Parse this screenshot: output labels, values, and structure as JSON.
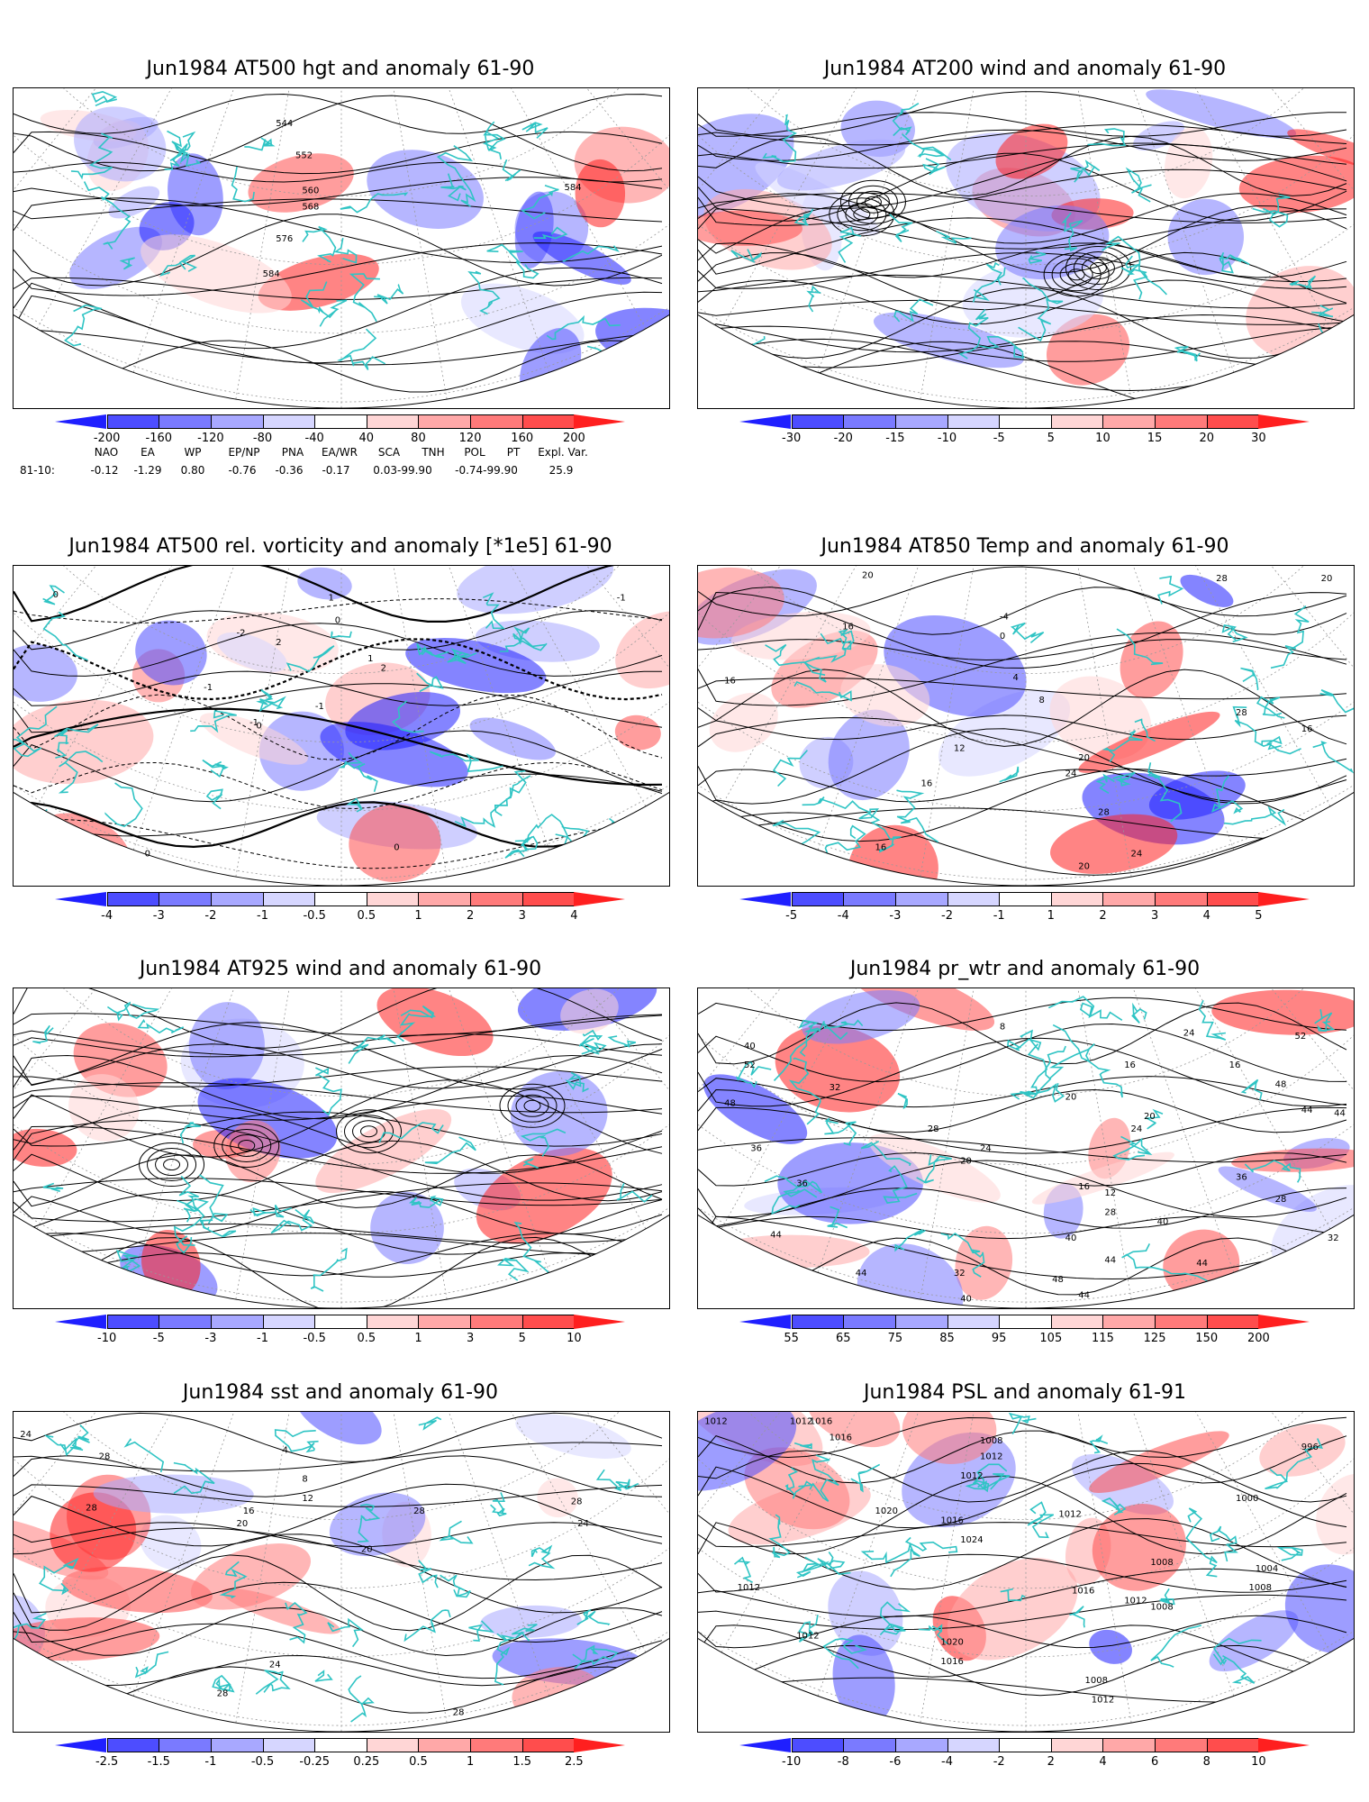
{
  "panels": [
    {
      "title": "Jun1984 AT500 hgt and anomaly 61-90",
      "contour_labels": [
        "544",
        "552",
        "560",
        "568",
        "576",
        "584",
        "584"
      ],
      "colorbar": {
        "ticks": [
          "-200",
          "-160",
          "-120",
          "-80",
          "-40",
          "40",
          "80",
          "120",
          "160",
          "200"
        ],
        "colors": [
          "#1f1fff",
          "#4d4dff",
          "#7a7aff",
          "#a8a8ff",
          "#d6d6ff",
          "#ffffff",
          "#ffd6d6",
          "#ffa8a8",
          "#ff7a7a",
          "#ff4d4d",
          "#ff1f1f"
        ]
      },
      "teleconnections": {
        "headers": [
          "NAO",
          "EA",
          "WP",
          "EP/NP",
          "PNA",
          "EA/WR",
          "SCA",
          "TNH",
          "POL",
          "PT",
          "Expl. Var."
        ],
        "row_label": "81-10:",
        "values": [
          "-0.12",
          "-1.29",
          "0.80",
          "-0.76",
          "-0.36",
          "-0.17",
          "0.03-99.90",
          "-0.74-99.90",
          "25.9"
        ]
      }
    },
    {
      "title": "Jun1984 AT200 wind and anomaly 61-90",
      "contour_labels": [],
      "colorbar": {
        "ticks": [
          "-30",
          "-20",
          "-15",
          "-10",
          "-5",
          "5",
          "10",
          "15",
          "20",
          "30"
        ],
        "colors": [
          "#1f1fff",
          "#4d4dff",
          "#7a7aff",
          "#a8a8ff",
          "#d6d6ff",
          "#ffffff",
          "#ffd6d6",
          "#ffa8a8",
          "#ff7a7a",
          "#ff4d4d",
          "#ff1f1f"
        ]
      }
    },
    {
      "title": "Jun1984 AT500 rel. vorticity and anomaly [*1e5] 61-90",
      "contour_labels": [
        "0",
        "0",
        "0",
        "-1",
        "-1",
        "-1",
        "1",
        "2",
        "-2",
        "2",
        "0",
        "-1",
        "0",
        "1"
      ],
      "colorbar": {
        "ticks": [
          "-4",
          "-3",
          "-2",
          "-1",
          "-0.5",
          "0.5",
          "1",
          "2",
          "3",
          "4"
        ],
        "colors": [
          "#1f1fff",
          "#4d4dff",
          "#7a7aff",
          "#a8a8ff",
          "#d6d6ff",
          "#ffffff",
          "#ffd6d6",
          "#ffa8a8",
          "#ff7a7a",
          "#ff4d4d",
          "#ff1f1f"
        ]
      }
    },
    {
      "title": "Jun1984 AT850 Temp and anomaly 61-90",
      "contour_labels": [
        "20",
        "16",
        "16",
        "-4",
        "0",
        "4",
        "8",
        "12",
        "16",
        "20",
        "24",
        "28",
        "20",
        "24",
        "28",
        "16",
        "16",
        "20",
        "28"
      ],
      "colorbar": {
        "ticks": [
          "-5",
          "-4",
          "-3",
          "-2",
          "-1",
          "1",
          "2",
          "3",
          "4",
          "5"
        ],
        "colors": [
          "#1f1fff",
          "#4d4dff",
          "#7a7aff",
          "#a8a8ff",
          "#d6d6ff",
          "#ffffff",
          "#ffd6d6",
          "#ffa8a8",
          "#ff7a7a",
          "#ff4d4d",
          "#ff1f1f"
        ]
      }
    },
    {
      "title": "Jun1984 AT925 wind and anomaly 61-90",
      "contour_labels": [],
      "colorbar": {
        "ticks": [
          "-10",
          "-5",
          "-3",
          "-1",
          "-0.5",
          "0.5",
          "1",
          "3",
          "5",
          "10"
        ],
        "colors": [
          "#1f1fff",
          "#4d4dff",
          "#7a7aff",
          "#a8a8ff",
          "#d6d6ff",
          "#ffffff",
          "#ffd6d6",
          "#ffa8a8",
          "#ff7a7a",
          "#ff4d4d",
          "#ff1f1f"
        ]
      }
    },
    {
      "title": "Jun1984 pr_wtr and anomaly 61-90",
      "contour_labels": [
        "52",
        "48",
        "40",
        "36",
        "44",
        "32",
        "28",
        "24",
        "20",
        "16",
        "12",
        "8",
        "16",
        "20",
        "24",
        "36",
        "44",
        "52",
        "48",
        "44",
        "44",
        "40",
        "44",
        "36",
        "32",
        "28",
        "24",
        "16",
        "20",
        "28",
        "32",
        "40",
        "44",
        "48",
        "44",
        "40"
      ],
      "colorbar": {
        "ticks": [
          "55",
          "65",
          "75",
          "85",
          "95",
          "105",
          "115",
          "125",
          "150",
          "200"
        ],
        "colors": [
          "#1f1fff",
          "#4d4dff",
          "#7a7aff",
          "#a8a8ff",
          "#d6d6ff",
          "#ffffff",
          "#ffd6d6",
          "#ffa8a8",
          "#ff7a7a",
          "#ff4d4d",
          "#ff1f1f"
        ]
      }
    },
    {
      "title": "Jun1984 sst and anomaly 61-90",
      "contour_labels": [
        "24",
        "28",
        "28",
        "4",
        "8",
        "12",
        "16",
        "20",
        "24",
        "28",
        "28",
        "28",
        "20",
        "24",
        "28"
      ],
      "colorbar": {
        "ticks": [
          "-2.5",
          "-1.5",
          "-1",
          "-0.5",
          "-0.25",
          "0.25",
          "0.5",
          "1",
          "1.5",
          "2.5"
        ],
        "colors": [
          "#1f1fff",
          "#4d4dff",
          "#7a7aff",
          "#a8a8ff",
          "#d6d6ff",
          "#ffffff",
          "#ffd6d6",
          "#ffa8a8",
          "#ff7a7a",
          "#ff4d4d",
          "#ff1f1f"
        ]
      }
    },
    {
      "title": "Jun1984 PSL and anomaly 61-91",
      "contour_labels": [
        "1012",
        "1016",
        "1012",
        "1016",
        "1008",
        "1012",
        "1012",
        "1020",
        "1016",
        "1024",
        "1012",
        "1008",
        "1000",
        "1004",
        "1008",
        "1016",
        "1012",
        "1008",
        "1012",
        "1020",
        "1016",
        "1008",
        "1012",
        "1012",
        "996"
      ],
      "colorbar": {
        "ticks": [
          "-10",
          "-8",
          "-6",
          "-4",
          "-2",
          "2",
          "4",
          "6",
          "8",
          "10"
        ],
        "colors": [
          "#1f1fff",
          "#4d4dff",
          "#7a7aff",
          "#a8a8ff",
          "#d6d6ff",
          "#ffffff",
          "#ffd6d6",
          "#ffa8a8",
          "#ff7a7a",
          "#ff4d4d",
          "#ff1f1f"
        ]
      }
    }
  ]
}
